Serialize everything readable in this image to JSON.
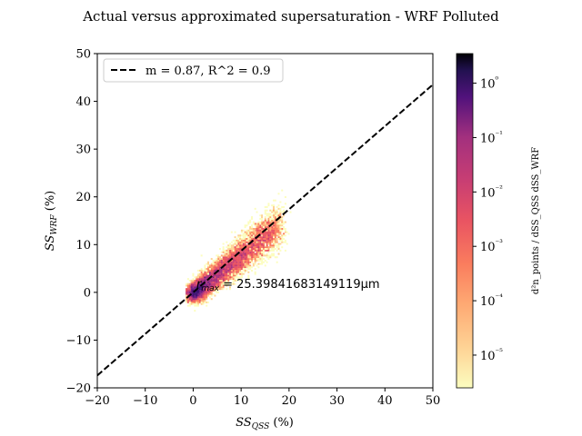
{
  "chart_data": {
    "type": "heatmap",
    "title": "Actual versus approximated supersaturation - WRF Polluted",
    "xlabel": "SS_QSS (%)",
    "ylabel": "SS_WRF (%)",
    "colorbar_label": "d²n_points / dSS_QSS dSS_WRF",
    "xlim": [
      -20,
      50
    ],
    "ylim": [
      -20,
      50
    ],
    "x_ticks": [
      -20,
      -10,
      0,
      10,
      20,
      30,
      40,
      50
    ],
    "y_ticks": [
      -20,
      -10,
      0,
      10,
      20,
      30,
      40,
      50
    ],
    "x_tick_labels": [
      "−20",
      "−10",
      "0",
      "10",
      "20",
      "30",
      "40",
      "50"
    ],
    "y_tick_labels": [
      "−20",
      "−10",
      "0",
      "10",
      "20",
      "30",
      "40",
      "50"
    ],
    "colorbar_scale": "log",
    "colorbar_range": [
      2.5e-06,
      3.5
    ],
    "colorbar_ticks": [
      1e-05,
      0.0001,
      0.001,
      0.01,
      0.1,
      1
    ],
    "colorbar_tick_labels": [
      "10⁻⁵",
      "10⁻⁴",
      "10⁻³",
      "10⁻²",
      "10⁻¹",
      "10⁰"
    ],
    "colormap": "magma_r",
    "fit_line": {
      "label": "m = 0.87, R^2 = 0.9",
      "slope": 0.87,
      "intercept": 0.0,
      "style": "dashed",
      "color": "#000000"
    },
    "legend_position": "upper-left",
    "annotation": {
      "text": "r_max = 25.39841683149119μm",
      "x": 0.5,
      "y": 1.5
    },
    "grid": false
  }
}
